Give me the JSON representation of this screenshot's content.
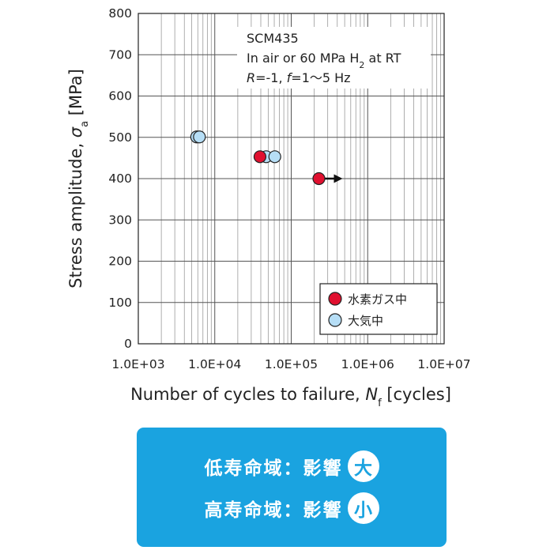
{
  "chart_data": {
    "type": "scatter",
    "x_scale": "log",
    "xlim": [
      1000,
      10000000
    ],
    "ylim": [
      0,
      800
    ],
    "x_ticks": [
      "1.0E+03",
      "1.0E+04",
      "1.0E+05",
      "1.0E+06",
      "1.0E+07"
    ],
    "y_ticks": [
      "0",
      "100",
      "200",
      "300",
      "400",
      "500",
      "600",
      "700",
      "800"
    ],
    "xlabel": {
      "main": "Number of cycles to failure, ",
      "symbol": "N",
      "sub": "f",
      "unit": " [cycles]"
    },
    "ylabel": {
      "main": "Stress amplitude, ",
      "symbol": "σ",
      "sub": "a",
      "unit": " [MPa]"
    },
    "grid": true,
    "annotation": {
      "line1": "SCM435",
      "line2_pre": "In air or 60 MPa H",
      "line2_sub": "2",
      "line2_post": " at RT",
      "line3_r": "R",
      "line3_mid": "=-1, ",
      "line3_f": "f",
      "line3_post": "=1～5 Hz"
    },
    "legend_position": "bottom-right",
    "series": [
      {
        "name": "水素ガス中",
        "color": "#e0102f",
        "points": [
          {
            "x": 39000,
            "y": 453
          },
          {
            "x": 230000,
            "y": 400,
            "runout": true
          }
        ]
      },
      {
        "name": "大気中",
        "color": "#b6def6",
        "points": [
          {
            "x": 5800,
            "y": 501
          },
          {
            "x": 6300,
            "y": 501
          },
          {
            "x": 47000,
            "y": 453
          },
          {
            "x": 61000,
            "y": 453
          }
        ]
      }
    ]
  },
  "summary": {
    "row1_text": "低寿命域：影響",
    "row1_badge": "大",
    "row2_text": "高寿命域：影響",
    "row2_badge": "小",
    "bg_color": "#1aa3e0"
  }
}
